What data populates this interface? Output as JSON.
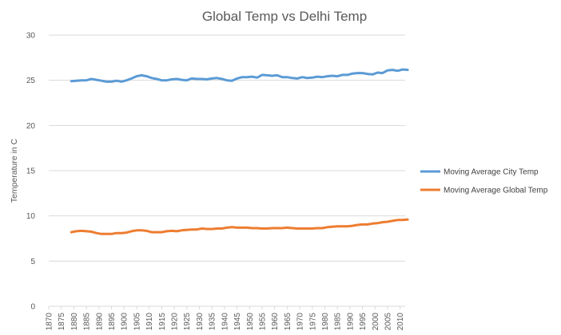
{
  "chart_data": {
    "type": "line",
    "title": "Global Temp vs Delhi Temp",
    "xlabel": "",
    "ylabel": "Temperature in C",
    "ylim": [
      0,
      30
    ],
    "yticks": [
      0,
      5,
      10,
      15,
      20,
      25,
      30
    ],
    "xlim": [
      1870,
      2012
    ],
    "xticks": [
      1870,
      1875,
      1880,
      1885,
      1890,
      1895,
      1900,
      1905,
      1910,
      1915,
      1920,
      1925,
      1930,
      1935,
      1940,
      1945,
      1950,
      1955,
      1960,
      1965,
      1970,
      1975,
      1980,
      1985,
      1990,
      1995,
      2000,
      2005,
      2010
    ],
    "grid": true,
    "legend_position": "right",
    "series": [
      {
        "name": "Moving Average City Temp",
        "color": "#5B9BD5",
        "x": [
          1879,
          1881,
          1883,
          1885,
          1887,
          1889,
          1891,
          1893,
          1895,
          1897,
          1899,
          1901,
          1903,
          1905,
          1907,
          1909,
          1911,
          1913,
          1915,
          1917,
          1919,
          1921,
          1923,
          1925,
          1927,
          1929,
          1931,
          1933,
          1935,
          1937,
          1939,
          1941,
          1943,
          1945,
          1947,
          1949,
          1951,
          1953,
          1955,
          1957,
          1959,
          1961,
          1963,
          1965,
          1967,
          1969,
          1971,
          1973,
          1975,
          1977,
          1979,
          1981,
          1983,
          1985,
          1987,
          1989,
          1991,
          1993,
          1995,
          1997,
          1999,
          2001,
          2003,
          2005,
          2007,
          2009,
          2011,
          2013
        ],
        "y": [
          24.9,
          24.95,
          25.0,
          25.0,
          25.15,
          25.05,
          24.95,
          24.85,
          24.85,
          24.95,
          24.85,
          25.0,
          25.2,
          25.45,
          25.55,
          25.45,
          25.25,
          25.15,
          25.0,
          25.0,
          25.1,
          25.15,
          25.05,
          25.0,
          25.2,
          25.15,
          25.15,
          25.1,
          25.2,
          25.25,
          25.15,
          25.0,
          24.95,
          25.2,
          25.35,
          25.35,
          25.4,
          25.3,
          25.6,
          25.55,
          25.5,
          25.55,
          25.35,
          25.35,
          25.25,
          25.2,
          25.35,
          25.25,
          25.3,
          25.4,
          25.35,
          25.45,
          25.5,
          25.45,
          25.6,
          25.6,
          25.75,
          25.8,
          25.8,
          25.7,
          25.65,
          25.85,
          25.8,
          26.1,
          26.15,
          26.05,
          26.2,
          26.15
        ]
      },
      {
        "name": "Moving Average Global Temp",
        "color": "#ED7D31",
        "x": [
          1879,
          1881,
          1883,
          1885,
          1887,
          1889,
          1891,
          1893,
          1895,
          1897,
          1899,
          1901,
          1903,
          1905,
          1907,
          1909,
          1911,
          1913,
          1915,
          1917,
          1919,
          1921,
          1923,
          1925,
          1927,
          1929,
          1931,
          1933,
          1935,
          1937,
          1939,
          1941,
          1943,
          1945,
          1947,
          1949,
          1951,
          1953,
          1955,
          1957,
          1959,
          1961,
          1963,
          1965,
          1967,
          1969,
          1971,
          1973,
          1975,
          1977,
          1979,
          1981,
          1983,
          1985,
          1987,
          1989,
          1991,
          1993,
          1995,
          1997,
          1999,
          2001,
          2003,
          2005,
          2007,
          2009,
          2011,
          2013
        ],
        "y": [
          8.2,
          8.3,
          8.35,
          8.3,
          8.25,
          8.1,
          8.0,
          8.0,
          8.0,
          8.1,
          8.1,
          8.15,
          8.3,
          8.4,
          8.4,
          8.35,
          8.2,
          8.2,
          8.2,
          8.3,
          8.35,
          8.3,
          8.4,
          8.45,
          8.5,
          8.5,
          8.6,
          8.55,
          8.55,
          8.6,
          8.6,
          8.7,
          8.75,
          8.7,
          8.7,
          8.7,
          8.65,
          8.65,
          8.6,
          8.6,
          8.65,
          8.65,
          8.65,
          8.7,
          8.65,
          8.6,
          8.6,
          8.6,
          8.6,
          8.65,
          8.65,
          8.75,
          8.8,
          8.85,
          8.85,
          8.85,
          8.9,
          9.0,
          9.05,
          9.05,
          9.15,
          9.2,
          9.3,
          9.35,
          9.45,
          9.55,
          9.55,
          9.6
        ]
      }
    ]
  }
}
